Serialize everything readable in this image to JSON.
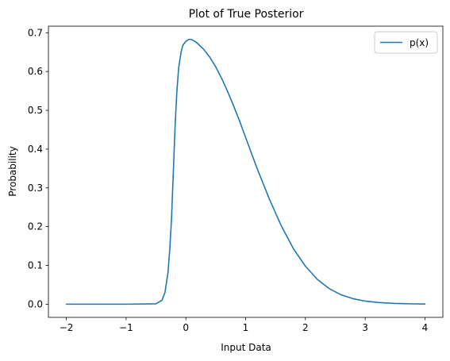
{
  "chart_data": {
    "type": "line",
    "title": "Plot of True Posterior",
    "xlabel": "Input Data",
    "ylabel": "Probability",
    "xlim": [
      -2.3,
      4.3
    ],
    "ylim": [
      -0.034,
      0.717
    ],
    "x_ticks": [
      -2,
      -1,
      0,
      1,
      2,
      3,
      4
    ],
    "x_tick_labels": [
      "−2",
      "−1",
      "0",
      "1",
      "2",
      "3",
      "4"
    ],
    "y_ticks": [
      0.0,
      0.1,
      0.2,
      0.3,
      0.4,
      0.5,
      0.6,
      0.7
    ],
    "y_tick_labels": [
      "0.0",
      "0.1",
      "0.2",
      "0.3",
      "0.4",
      "0.5",
      "0.6",
      "0.7"
    ],
    "grid": false,
    "legend_position": "top-right",
    "series": [
      {
        "name": "p(x)",
        "color": "#1f77b4",
        "x": [
          -2.0,
          -1.0,
          -0.5,
          -0.4,
          -0.35,
          -0.3,
          -0.27,
          -0.24,
          -0.22,
          -0.2,
          -0.18,
          -0.15,
          -0.12,
          -0.08,
          -0.05,
          0.0,
          0.05,
          0.08,
          0.1,
          0.15,
          0.2,
          0.3,
          0.4,
          0.5,
          0.6,
          0.7,
          0.8,
          0.9,
          1.0,
          1.1,
          1.2,
          1.4,
          1.6,
          1.8,
          2.0,
          2.2,
          2.4,
          2.6,
          2.8,
          3.0,
          3.2,
          3.5,
          3.8,
          4.0
        ],
        "y": [
          0.0,
          0.0,
          0.001,
          0.01,
          0.03,
          0.08,
          0.14,
          0.22,
          0.3,
          0.38,
          0.46,
          0.55,
          0.61,
          0.65,
          0.668,
          0.678,
          0.683,
          0.683,
          0.682,
          0.678,
          0.672,
          0.657,
          0.637,
          0.612,
          0.582,
          0.548,
          0.511,
          0.472,
          0.43,
          0.388,
          0.347,
          0.27,
          0.201,
          0.143,
          0.098,
          0.064,
          0.04,
          0.024,
          0.014,
          0.008,
          0.0045,
          0.002,
          0.0008,
          0.0004
        ]
      }
    ]
  }
}
